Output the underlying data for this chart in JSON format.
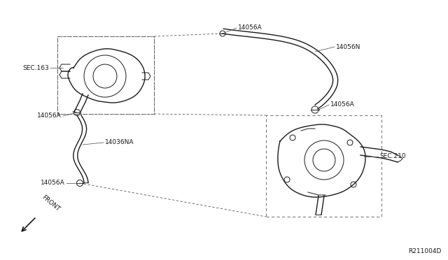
{
  "bg_color": "#ffffff",
  "part_number": "R211004D",
  "line_color": "#1a1a1a",
  "label_color": "#1a1a1a",
  "dash_color": "#555555",
  "labels": {
    "SEC163": "SEC.163",
    "SEC210": "SEC.210",
    "14056A_1": "14056A",
    "14056A_2": "14056A",
    "14056A_3": "14056A",
    "14056A_4": "14056A",
    "14056N": "14056N",
    "14056NA": "14036NA"
  },
  "figsize": [
    6.4,
    3.72
  ],
  "dpi": 100
}
